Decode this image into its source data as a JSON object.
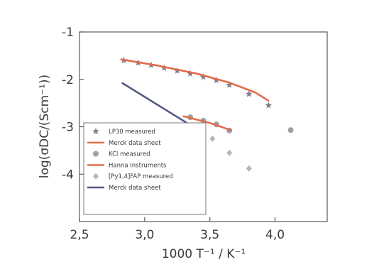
{
  "chart_data": {
    "type": "scatter",
    "xlabel": "1000 T⁻¹ / K⁻¹",
    "ylabel": "log(σDC/(Scm⁻¹))",
    "xlim": [
      2.5,
      4.4
    ],
    "ylim": [
      -5.0,
      -1.0
    ],
    "xticks": [
      "2,5",
      "3,0",
      "3,5",
      "4,0"
    ],
    "xtick_values": [
      2.5,
      3.0,
      3.5,
      4.0
    ],
    "yticks": [
      "-1",
      "-2",
      "-3",
      "-4"
    ],
    "ytick_values": [
      -1,
      -2,
      -3,
      -4
    ],
    "legend_position": "bottom-left",
    "series": [
      {
        "name": "LP30 measured",
        "kind": "markers",
        "marker": "star",
        "color": "#7e7e8c",
        "points": [
          [
            2.84,
            -1.6
          ],
          [
            2.95,
            -1.65
          ],
          [
            3.05,
            -1.7
          ],
          [
            3.15,
            -1.76
          ],
          [
            3.25,
            -1.82
          ],
          [
            3.35,
            -1.88
          ],
          [
            3.45,
            -1.95
          ],
          [
            3.55,
            -2.02
          ],
          [
            3.65,
            -2.12
          ],
          [
            3.8,
            -2.31
          ],
          [
            3.95,
            -2.55
          ]
        ]
      },
      {
        "name": "Merck data sheet",
        "kind": "line",
        "color": "#e36b4a",
        "points": [
          [
            2.82,
            -1.58
          ],
          [
            3.1,
            -1.71
          ],
          [
            3.4,
            -1.88
          ],
          [
            3.65,
            -2.07
          ],
          [
            3.85,
            -2.28
          ],
          [
            3.95,
            -2.45
          ]
        ]
      },
      {
        "name": "KCl measured",
        "kind": "markers",
        "marker": "circle",
        "color": "#8e8e98",
        "points": [
          [
            3.35,
            -2.8
          ],
          [
            3.45,
            -2.87
          ],
          [
            3.55,
            -2.95
          ],
          [
            3.65,
            -3.08
          ],
          [
            4.12,
            -3.07
          ]
        ]
      },
      {
        "name": "Hanna Instruments",
        "kind": "line",
        "color": "#e36b4a",
        "points": [
          [
            3.3,
            -2.78
          ],
          [
            3.5,
            -2.92
          ],
          [
            3.66,
            -3.07
          ]
        ]
      },
      {
        "name": "[Py1,4]FAP measured",
        "kind": "markers",
        "marker": "diamond",
        "color": "#a3a3a3",
        "points": [
          [
            3.52,
            -3.25
          ],
          [
            3.65,
            -3.55
          ],
          [
            3.8,
            -3.88
          ]
        ]
      },
      {
        "name": "Merck data sheet",
        "kind": "line",
        "color": "#545a80",
        "points": [
          [
            2.83,
            -2.08
          ],
          [
            3.4,
            -3.05
          ]
        ]
      }
    ]
  }
}
